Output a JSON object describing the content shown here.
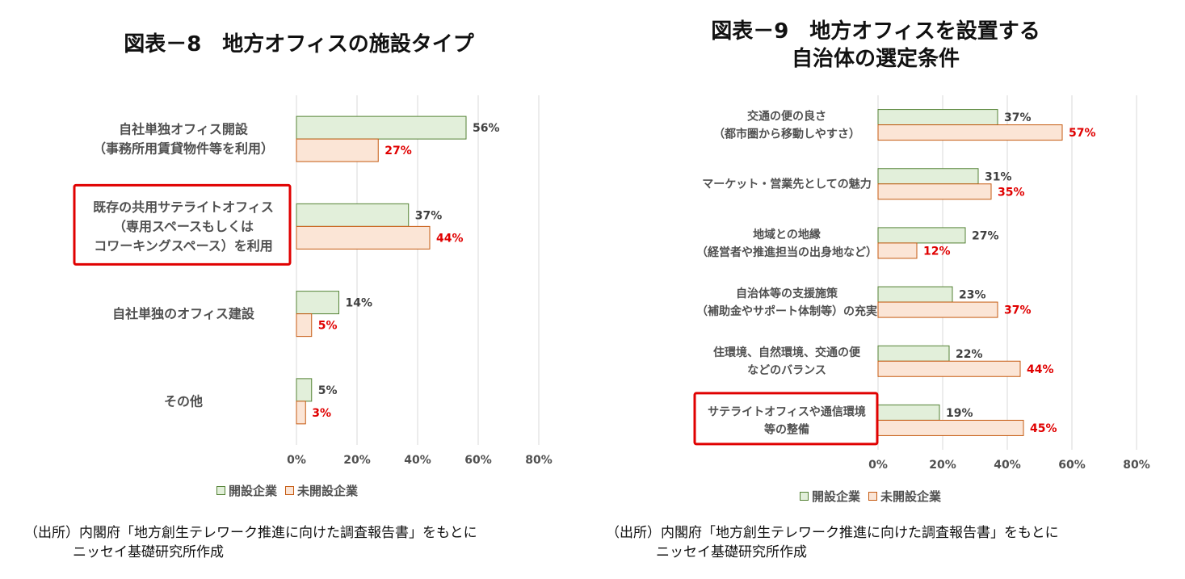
{
  "chart_data": [
    {
      "type": "bar",
      "orientation": "horizontal",
      "title": "図表－8　地方オフィスの施設タイプ",
      "categories": [
        "自社単独オフィス開設\n（事務所用賃貸物件等を利用）",
        "既存の共用サテライトオフィス\n（専用スペースもしくは\nコワーキングスペース）を利用",
        "自社単独のオフィス建設",
        "その他"
      ],
      "highlighted_category_index": 1,
      "series": [
        {
          "name": "開設企業",
          "values": [
            56,
            37,
            14,
            5
          ],
          "labels": [
            "56%",
            "37%",
            "14%",
            "5%"
          ],
          "color": "#e2efda",
          "border": "#548235",
          "label_color": "#404040"
        },
        {
          "name": "未開設企業",
          "values": [
            27,
            44,
            5,
            3
          ],
          "labels": [
            "27%",
            "44%",
            "5%",
            "3%"
          ],
          "color": "#fbe5d6",
          "border": "#c55a11",
          "label_color": "#e00000"
        }
      ],
      "xlim": [
        0,
        80
      ],
      "xticks": [
        "0%",
        "20%",
        "40%",
        "60%",
        "80%"
      ],
      "grid": true,
      "legend_position": "bottom"
    },
    {
      "type": "bar",
      "orientation": "horizontal",
      "title": "図表－9　地方オフィスを設置する\n自治体の選定条件",
      "categories": [
        "交通の便の良さ\n（都市圏から移動しやすさ）",
        "マーケット・営業先としての魅力",
        "地域との地縁\n（経営者や推進担当の出身地など）",
        "自治体等の支援施策\n（補助金やサポート体制等）の充実",
        "住環境、自然環境、交通の便\nなどのバランス",
        "サテライトオフィスや通信環境\n等の整備"
      ],
      "highlighted_category_index": 5,
      "series": [
        {
          "name": "開設企業",
          "values": [
            37,
            31,
            27,
            23,
            22,
            19
          ],
          "labels": [
            "37%",
            "31%",
            "27%",
            "23%",
            "22%",
            "19%"
          ],
          "color": "#e2efda",
          "border": "#548235",
          "label_color": "#404040"
        },
        {
          "name": "未開設企業",
          "values": [
            57,
            35,
            12,
            37,
            44,
            45
          ],
          "labels": [
            "57%",
            "35%",
            "12%",
            "37%",
            "44%",
            "45%"
          ],
          "color": "#fbe5d6",
          "border": "#c55a11",
          "label_color": "#e00000"
        }
      ],
      "xlim": [
        0,
        80
      ],
      "xticks": [
        "0%",
        "20%",
        "40%",
        "60%",
        "80%"
      ],
      "grid": true,
      "legend_position": "bottom"
    }
  ],
  "legend": {
    "series1": "開設企業",
    "series2": "未開設企業"
  },
  "source": {
    "line1": "（出所）内閣府「地方創生テレワーク推進に向けた調査報告書」をもとに",
    "line2": "ニッセイ基礎研究所作成"
  },
  "colors": {
    "highlight_box": "#e00000",
    "gridline": "#d9d9d9",
    "axis_text": "#505050"
  }
}
